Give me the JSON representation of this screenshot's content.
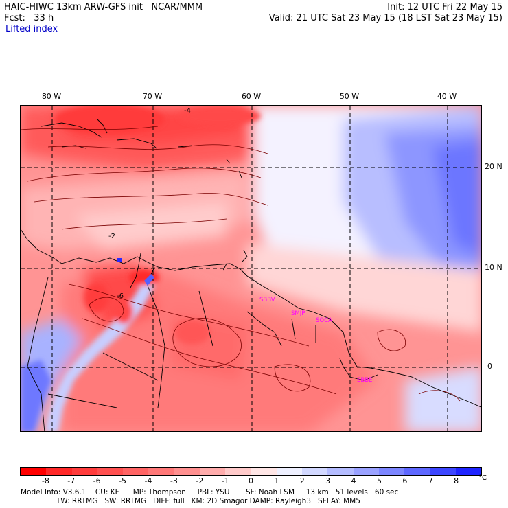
{
  "header": {
    "title": "HAIC-HIWC 13km ARW-GFS init   NCAR/MMM",
    "fcst": "Fcst:   33 h",
    "product": "Lifted index",
    "init": "Init: 12 UTC Fri 22 May 15",
    "valid": "Valid: 21 UTC Sat 23 May 15 (18 LST Sat 23 May 15)"
  },
  "map": {
    "lon_labels": [
      "80 W",
      "70 W",
      "60 W",
      "50 W",
      "40 W"
    ],
    "lat_labels": [
      "20 N",
      "10 N",
      "0"
    ],
    "station_labels": [
      "SBBV",
      "SMJP",
      "SOCA",
      "SBBE"
    ],
    "station_color": "#ff00ff",
    "contour_labels": [
      "-2",
      "-4",
      "-6"
    ]
  },
  "colorbar": {
    "ticks": [
      "-8",
      "-7",
      "-6",
      "-5",
      "-4",
      "-3",
      "-2",
      "-1",
      "0",
      "1",
      "2",
      "3",
      "4",
      "5",
      "6",
      "7",
      "8"
    ],
    "unit": "°C",
    "colors": [
      "#ff0000",
      "#ff2828",
      "#ff3c3c",
      "#ff5050",
      "#ff6464",
      "#ff7878",
      "#ff9090",
      "#ffacac",
      "#ffcaca",
      "#ffe6e6",
      "#eef0ff",
      "#d2d8ff",
      "#b4bcff",
      "#9aa2ff",
      "#7c86ff",
      "#5e68ff",
      "#3c46ff",
      "#1e24ff"
    ]
  },
  "footer": {
    "line1": "Model Info: V3.6.1    CU: KF      MP: Thompson     PBL: YSU       SF: Noah LSM     13 km   51 levels   60 sec",
    "line2": "                LW: RRTMG   SW: RRTMG   DIFF: full   KM: 2D Smagor DAMP: Rayleigh3   SFLAY: MM5"
  }
}
